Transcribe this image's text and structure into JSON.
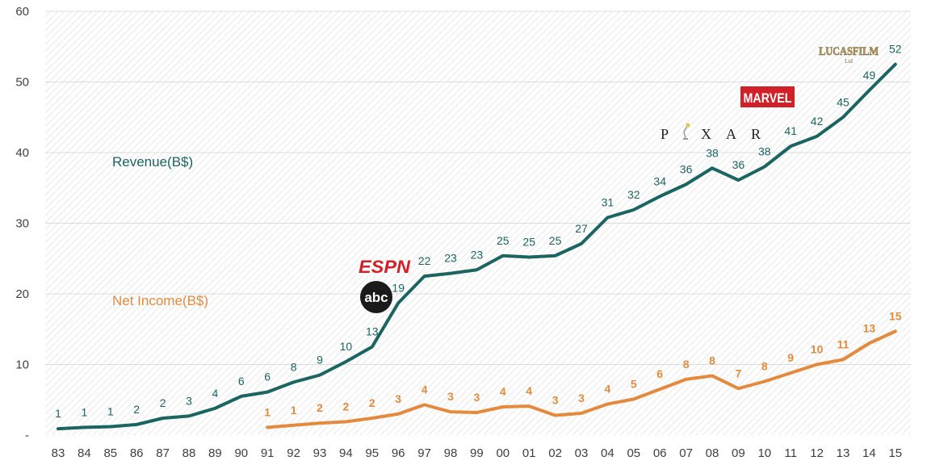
{
  "chart_data": {
    "type": "line",
    "title": "",
    "xlabel": "",
    "ylabel": "",
    "ylim": [
      0,
      60
    ],
    "y_ticks": [
      "-",
      "10",
      "20",
      "30",
      "40",
      "50",
      "60"
    ],
    "grid": true,
    "categories": [
      "83",
      "84",
      "85",
      "86",
      "87",
      "88",
      "89",
      "90",
      "91",
      "92",
      "93",
      "94",
      "95",
      "96",
      "97",
      "98",
      "99",
      "00",
      "01",
      "02",
      "03",
      "04",
      "05",
      "06",
      "07",
      "08",
      "09",
      "10",
      "11",
      "12",
      "13",
      "14",
      "15"
    ],
    "series": [
      {
        "name": "Revenue(B$)",
        "color": "#1a6461",
        "values": [
          0.9,
          1.1,
          1.2,
          1.5,
          2.4,
          2.7,
          3.8,
          5.5,
          6.1,
          7.5,
          8.5,
          10.4,
          12.5,
          18.7,
          22.5,
          22.9,
          23.4,
          25.4,
          25.2,
          25.4,
          27.1,
          30.8,
          31.9,
          33.8,
          35.5,
          37.8,
          36.1,
          38.0,
          40.9,
          42.3,
          45.0,
          48.8,
          52.5
        ],
        "labels": [
          "1",
          "1",
          "1",
          "2",
          "2",
          "3",
          "4",
          "6",
          "6",
          "8",
          "9",
          "10",
          "13",
          "19",
          "22",
          "23",
          "23",
          "25",
          "25",
          "25",
          "27",
          "31",
          "32",
          "34",
          "36",
          "38",
          "36",
          "38",
          "41",
          "42",
          "45",
          "49",
          "52"
        ]
      },
      {
        "name": "Net Income(B$)",
        "color": "#e58a3c",
        "values": [
          null,
          null,
          null,
          null,
          null,
          null,
          null,
          null,
          1.1,
          1.4,
          1.7,
          1.9,
          2.4,
          3.0,
          4.3,
          3.3,
          3.2,
          4.0,
          4.1,
          2.8,
          3.1,
          4.4,
          5.1,
          6.5,
          7.9,
          8.4,
          6.6,
          7.6,
          8.8,
          10.0,
          10.7,
          13.0,
          14.7
        ],
        "labels": [
          null,
          null,
          null,
          null,
          null,
          null,
          null,
          null,
          "1",
          "1",
          "2",
          "2",
          "2",
          "3",
          "4",
          "3",
          "3",
          "4",
          "4",
          "3",
          "3",
          "4",
          "5",
          "6",
          "8",
          "8",
          "7",
          "8",
          "9",
          "10",
          "11",
          "13",
          "15"
        ]
      }
    ],
    "annotations": [
      {
        "id": "espn",
        "text": "ESPN",
        "year": "96"
      },
      {
        "id": "abc",
        "text": "abc",
        "year": "96"
      },
      {
        "id": "pixar",
        "text": "P",
        "text2": "X A R",
        "year": "07"
      },
      {
        "id": "marvel",
        "text": "MARVEL",
        "year": "09"
      },
      {
        "id": "lucasfilm",
        "text": "LUCASFILM",
        "sub": "Ltd",
        "year": "13"
      }
    ]
  },
  "colors": {
    "revenue": "#1a6461",
    "net_income": "#e58a3c",
    "espn": "#d12027",
    "marvel": "#d12027",
    "lucasfilm": "#b5955a"
  }
}
